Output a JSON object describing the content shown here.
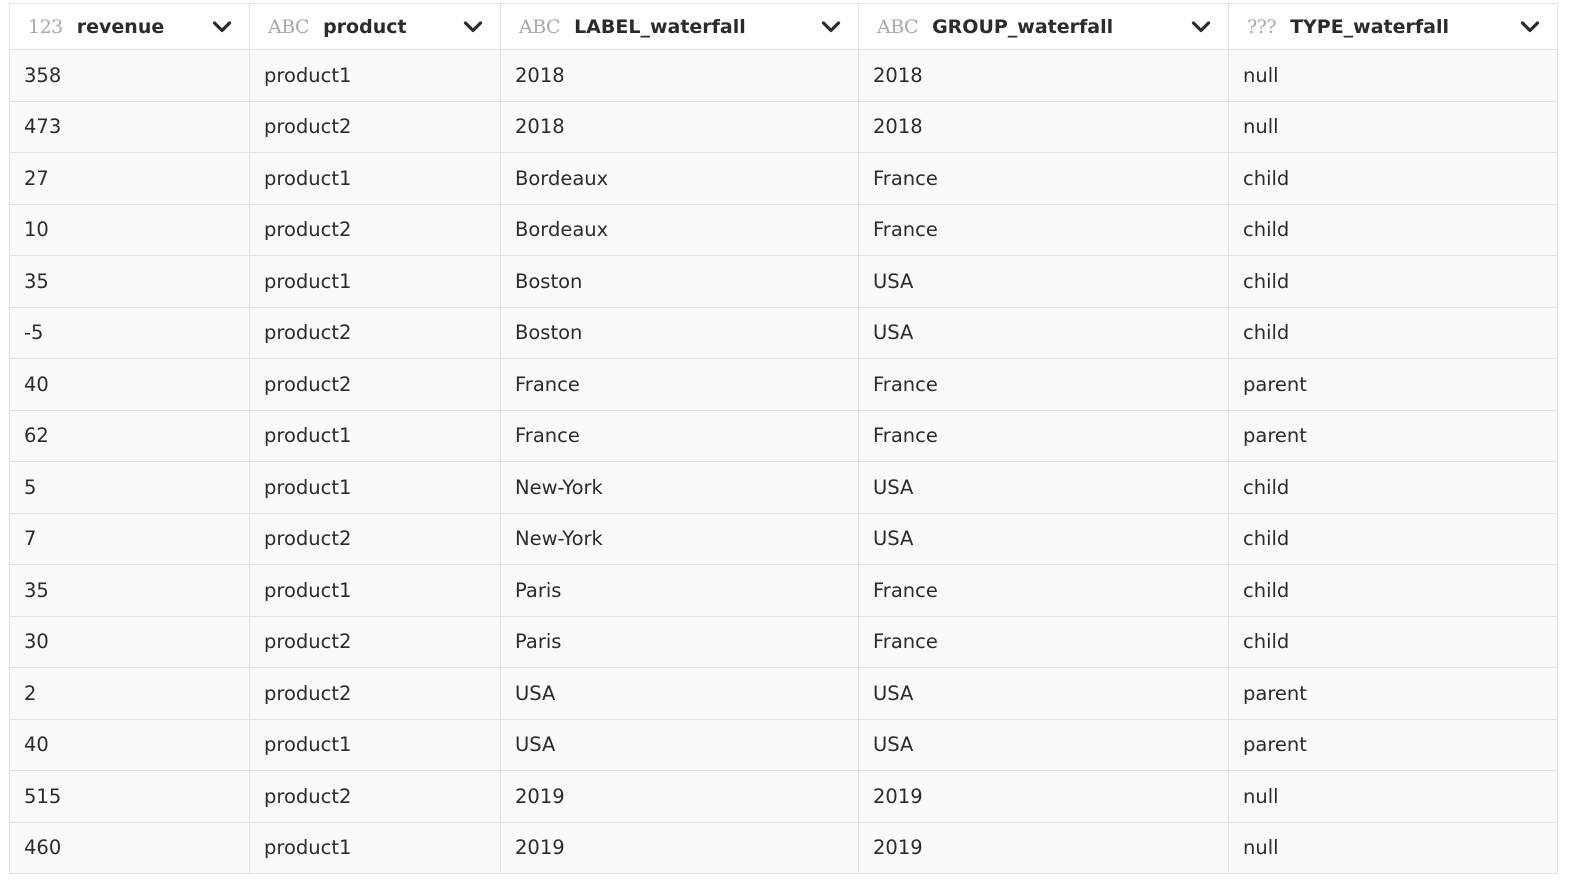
{
  "columns": [
    {
      "type": "123",
      "name": "revenue"
    },
    {
      "type": "ABC",
      "name": "product"
    },
    {
      "type": "ABC",
      "name": "LABEL_waterfall"
    },
    {
      "type": "ABC",
      "name": "GROUP_waterfall"
    },
    {
      "type": "???",
      "name": "TYPE_waterfall"
    }
  ],
  "rows": [
    [
      "358",
      "product1",
      "2018",
      "2018",
      "null"
    ],
    [
      "473",
      "product2",
      "2018",
      "2018",
      "null"
    ],
    [
      "27",
      "product1",
      "Bordeaux",
      "France",
      "child"
    ],
    [
      "10",
      "product2",
      "Bordeaux",
      "France",
      "child"
    ],
    [
      "35",
      "product1",
      "Boston",
      "USA",
      "child"
    ],
    [
      "-5",
      "product2",
      "Boston",
      "USA",
      "child"
    ],
    [
      "40",
      "product2",
      "France",
      "France",
      "parent"
    ],
    [
      "62",
      "product1",
      "France",
      "France",
      "parent"
    ],
    [
      "5",
      "product1",
      "New-York",
      "USA",
      "child"
    ],
    [
      "7",
      "product2",
      "New-York",
      "USA",
      "child"
    ],
    [
      "35",
      "product1",
      "Paris",
      "France",
      "child"
    ],
    [
      "30",
      "product2",
      "Paris",
      "France",
      "child"
    ],
    [
      "2",
      "product2",
      "USA",
      "USA",
      "parent"
    ],
    [
      "40",
      "product1",
      "USA",
      "USA",
      "parent"
    ],
    [
      "515",
      "product2",
      "2019",
      "2019",
      "null"
    ],
    [
      "460",
      "product1",
      "2019",
      "2019",
      "null"
    ]
  ],
  "icons": {
    "column_menu": "chevron-down-icon"
  },
  "colors": {
    "cell_background": "#fafafa",
    "header_background": "#ffffff",
    "border": "#e2e2e2",
    "type_tag": "#a8a8a8",
    "text": "#2b2b2b"
  }
}
